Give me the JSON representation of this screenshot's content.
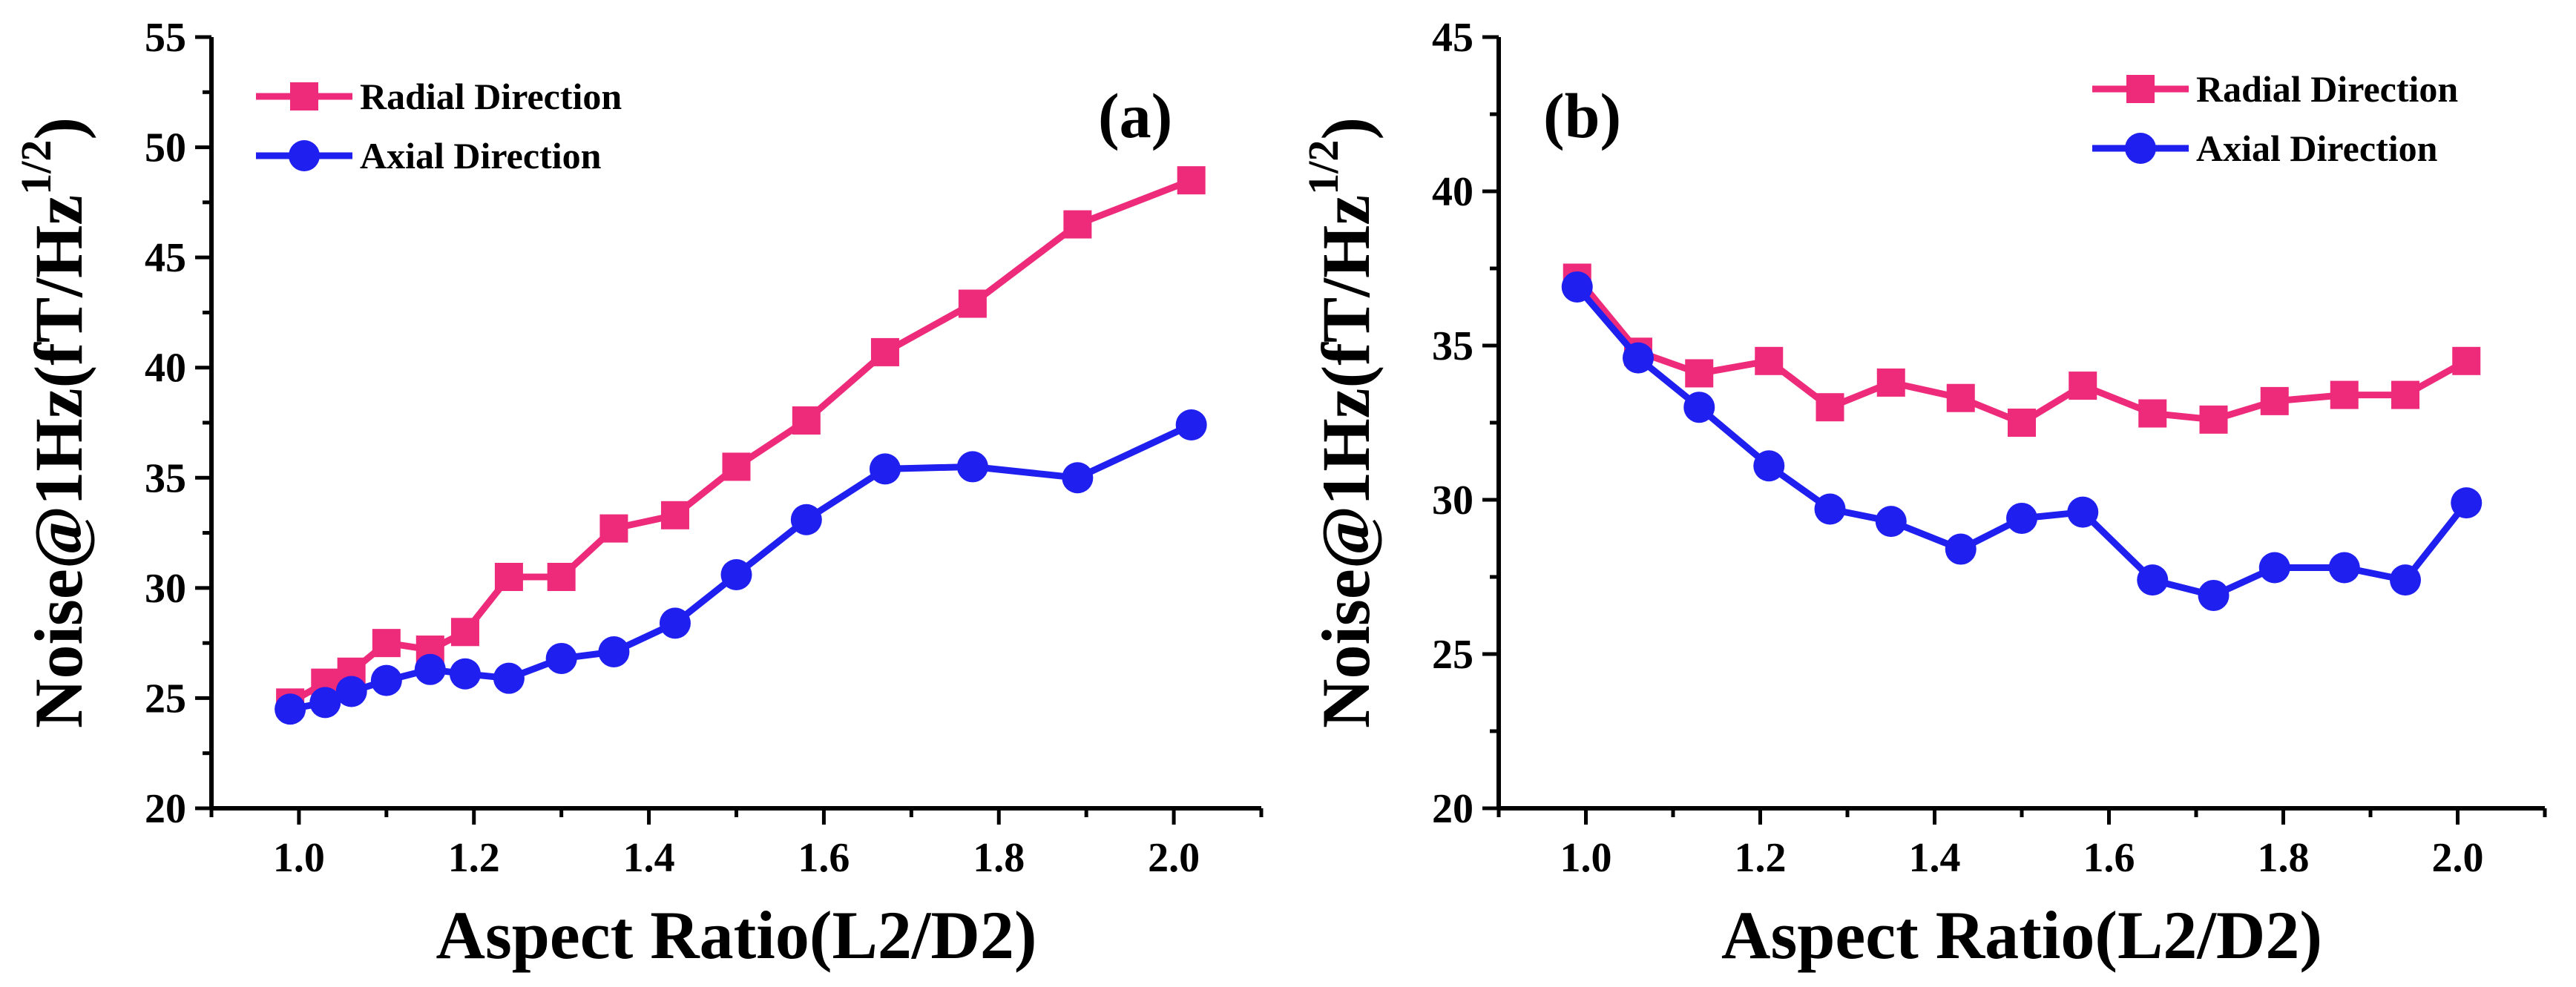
{
  "colors": {
    "radial": "#ee2a7b",
    "axial": "#1f1ff0",
    "axis": "#000000"
  },
  "chart_data": [
    {
      "type": "line",
      "panel_label": "(a)",
      "xlabel": "Aspect Ratio(L2/D2)",
      "ylabel_main": "Noise@1Hz(fT/Hz",
      "ylabel_sup": "1/2",
      "ylabel_close": ")",
      "xlim": [
        0.9,
        2.1
      ],
      "ylim": [
        20,
        55
      ],
      "xticks": [
        1.0,
        1.2,
        1.4,
        1.6,
        1.8,
        2.0
      ],
      "xtick_labels": [
        "1.0",
        "1.2",
        "1.4",
        "1.6",
        "1.8",
        "2.0"
      ],
      "yticks": [
        20,
        25,
        30,
        35,
        40,
        45,
        50,
        55
      ],
      "ytick_labels": [
        "20",
        "25",
        "30",
        "35",
        "40",
        "45",
        "50",
        "55"
      ],
      "legend_position": "top-left",
      "series": [
        {
          "name": "Radial Direction",
          "color_key": "radial",
          "marker": "square",
          "x": [
            0.99,
            1.03,
            1.06,
            1.1,
            1.15,
            1.19,
            1.24,
            1.3,
            1.36,
            1.43,
            1.5,
            1.58,
            1.67,
            1.77,
            1.89,
            2.02
          ],
          "y": [
            24.8,
            25.7,
            26.2,
            27.5,
            27.2,
            28.0,
            30.5,
            30.5,
            32.7,
            33.3,
            35.5,
            37.6,
            40.7,
            42.9,
            46.5,
            48.5
          ]
        },
        {
          "name": "Axial Direction",
          "color_key": "axial",
          "marker": "circle",
          "x": [
            0.99,
            1.03,
            1.06,
            1.1,
            1.15,
            1.19,
            1.24,
            1.3,
            1.36,
            1.43,
            1.5,
            1.58,
            1.67,
            1.77,
            1.89,
            2.02
          ],
          "y": [
            24.5,
            24.8,
            25.3,
            25.8,
            26.3,
            26.1,
            25.9,
            26.8,
            27.1,
            28.4,
            30.6,
            33.1,
            35.4,
            35.5,
            35.0,
            37.4
          ]
        }
      ]
    },
    {
      "type": "line",
      "panel_label": "(b)",
      "xlabel": "Aspect Ratio(L2/D2)",
      "ylabel_main": "Noise@1Hz(fT/Hz",
      "ylabel_sup": "1/2",
      "ylabel_close": ")",
      "xlim": [
        0.9,
        2.1
      ],
      "ylim": [
        20,
        45
      ],
      "xticks": [
        1.0,
        1.2,
        1.4,
        1.6,
        1.8,
        2.0
      ],
      "xtick_labels": [
        "1.0",
        "1.2",
        "1.4",
        "1.6",
        "1.8",
        "2.0"
      ],
      "yticks": [
        20,
        25,
        30,
        35,
        40,
        45
      ],
      "ytick_labels": [
        "20",
        "25",
        "30",
        "35",
        "40",
        "45"
      ],
      "legend_position": "top-right",
      "series": [
        {
          "name": "Radial Direction",
          "color_key": "radial",
          "marker": "square",
          "x": [
            0.99,
            1.06,
            1.13,
            1.21,
            1.28,
            1.35,
            1.43,
            1.5,
            1.57,
            1.65,
            1.72,
            1.79,
            1.87,
            1.94,
            2.01
          ],
          "y": [
            37.2,
            34.8,
            34.1,
            34.5,
            33.0,
            33.8,
            33.3,
            32.5,
            33.7,
            32.8,
            32.6,
            33.2,
            33.4,
            33.4,
            34.5
          ]
        },
        {
          "name": "Axial Direction",
          "color_key": "axial",
          "marker": "circle",
          "x": [
            0.99,
            1.06,
            1.13,
            1.21,
            1.28,
            1.35,
            1.43,
            1.5,
            1.57,
            1.65,
            1.72,
            1.79,
            1.87,
            1.94,
            2.01
          ],
          "y": [
            36.9,
            34.6,
            33.0,
            31.1,
            29.7,
            29.3,
            28.4,
            29.4,
            29.6,
            27.4,
            26.9,
            27.8,
            27.8,
            27.4,
            29.9
          ]
        }
      ]
    }
  ]
}
